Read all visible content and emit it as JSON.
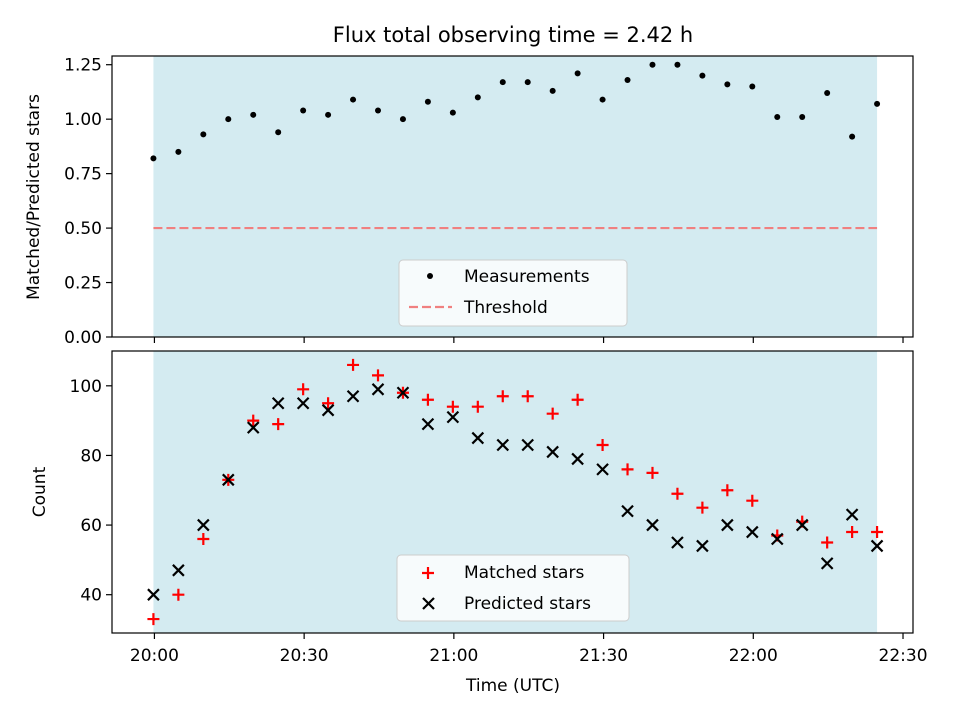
{
  "chart_data": {
    "title": "Flux total observing time = 2.42 h",
    "xlabel": "Time (UTC)",
    "x_ticks": [
      "20:00",
      "20:30",
      "21:00",
      "21:30",
      "22:00",
      "22:30"
    ],
    "x_tick_minutes": [
      0,
      30,
      60,
      90,
      120,
      150
    ],
    "xlim_minutes_after_20_00": [
      -8.5,
      152
    ],
    "observing_window_minutes": [
      -0.2,
      144.8
    ],
    "colors": {
      "observing_window": "#d4ebf1",
      "measurements": "#000000",
      "threshold": "#f08080",
      "matched": "#ff0000",
      "predicted": "#000000"
    },
    "x_minutes": [
      -0.2,
      4.8,
      9.8,
      14.8,
      19.8,
      24.8,
      29.8,
      34.8,
      39.8,
      44.8,
      49.8,
      54.8,
      59.8,
      64.8,
      69.8,
      74.8,
      79.8,
      84.8,
      89.8,
      94.8,
      99.8,
      104.8,
      109.8,
      114.8,
      119.8,
      124.8,
      129.8,
      134.8,
      139.8,
      144.8
    ],
    "top": {
      "type": "scatter",
      "ylabel": "Matched/Predicted stars",
      "ylim": [
        0,
        1.29
      ],
      "y_ticks": [
        "0.00",
        "0.25",
        "0.50",
        "0.75",
        "1.00",
        "1.25"
      ],
      "threshold": 0.5,
      "legend": [
        "Measurements",
        "Threshold"
      ],
      "legend_position": "lower center",
      "ratio": [
        0.82,
        0.85,
        0.93,
        1.0,
        1.02,
        0.94,
        1.04,
        1.02,
        1.09,
        1.04,
        1.0,
        1.08,
        1.03,
        1.1,
        1.17,
        1.17,
        1.13,
        1.21,
        1.09,
        1.18,
        1.25,
        1.25,
        1.2,
        1.16,
        1.15,
        1.01,
        1.01,
        1.12,
        0.92,
        1.07
      ]
    },
    "bottom": {
      "type": "scatter",
      "ylabel": "Count",
      "ylim": [
        29,
        110
      ],
      "y_ticks": [
        "40",
        "60",
        "80",
        "100"
      ],
      "legend": [
        "Matched stars",
        "Predicted stars"
      ],
      "legend_position": "lower center",
      "matched": [
        33,
        40,
        56,
        73,
        90,
        89,
        99,
        95,
        106,
        103,
        98,
        96,
        94,
        94,
        97,
        97,
        92,
        96,
        83,
        76,
        75,
        69,
        65,
        70,
        67,
        57,
        61,
        55,
        58,
        58
      ],
      "predicted": [
        40,
        47,
        60,
        73,
        88,
        95,
        95,
        93,
        97,
        99,
        98,
        89,
        91,
        85,
        83,
        83,
        81,
        79,
        76,
        64,
        60,
        55,
        54,
        60,
        58,
        56,
        60,
        49,
        63,
        54
      ]
    }
  }
}
